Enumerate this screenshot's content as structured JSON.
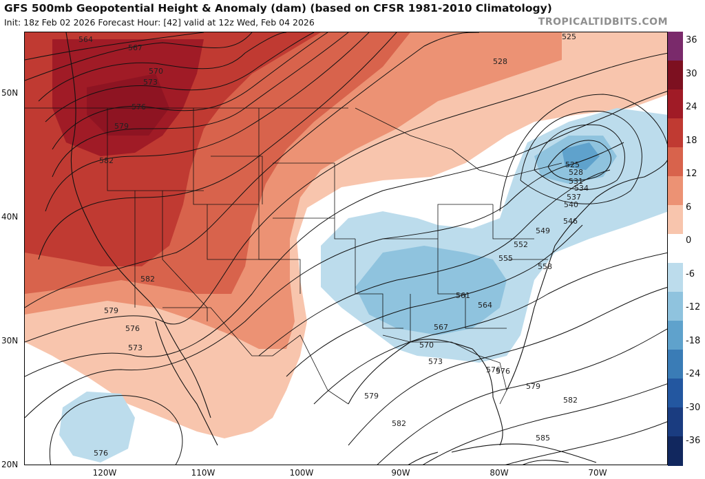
{
  "header": {
    "title": "GFS 500mb Geopotential Height & Anomaly (dam) (based on CFSR 1981-2010 Climatology)",
    "subtitle": "Init: 18z Feb 02 2026   Forecast Hour: [42]   valid at 12z Wed, Feb 04 2026",
    "brand": "TROPICALTIDBITS.COM"
  },
  "colorbar": {
    "labels": [
      "36",
      "30",
      "24",
      "18",
      "12",
      "6",
      "0",
      "-6",
      "-12",
      "-18",
      "-24",
      "-30",
      "-36"
    ],
    "colors": [
      "#7a2a6b",
      "#7d1020",
      "#a01b26",
      "#c03a32",
      "#d8634c",
      "#ec9274",
      "#f8c5ad",
      "#ffffff",
      "#bcdcec",
      "#8fc3de",
      "#5fa2cc",
      "#3a7cb6",
      "#2357a0",
      "#1a3c80",
      "#11275e"
    ]
  },
  "axes": {
    "lat_labels": [
      "50N",
      "40N",
      "30N",
      "20N"
    ],
    "lon_labels": [
      "120W",
      "110W",
      "100W",
      "90W",
      "80W",
      "70W"
    ]
  },
  "contour_labels": [
    "564",
    "567",
    "570",
    "573",
    "576",
    "579",
    "582",
    "582",
    "579",
    "576",
    "573",
    "576",
    "525",
    "528",
    "525",
    "528",
    "531",
    "534",
    "537",
    "540",
    "546",
    "549",
    "552",
    "555",
    "558",
    "561",
    "564",
    "567",
    "570",
    "573",
    "576",
    "579",
    "582",
    "585",
    "579",
    "576",
    "582"
  ]
}
